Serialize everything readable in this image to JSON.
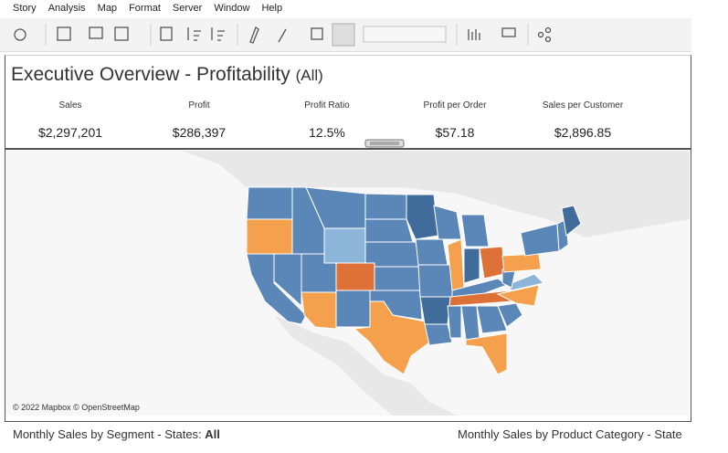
{
  "menu": [
    "Story",
    "Analysis",
    "Map",
    "Format",
    "Server",
    "Window",
    "Help"
  ],
  "dashboard": {
    "title": "Executive Overview - Profitability",
    "title_filter": "(All)",
    "kpis": [
      {
        "label": "Sales",
        "value": "$2,297,201"
      },
      {
        "label": "Profit",
        "value": "$286,397"
      },
      {
        "label": "Profit Ratio",
        "value": "12.5%"
      },
      {
        "label": "Profit per Order",
        "value": "$57.18"
      },
      {
        "label": "Sales per Customer",
        "value": "$2,896.85"
      }
    ],
    "map_attribution": "© 2022 Mapbox © OpenStreetMap",
    "footer_left": "Monthly Sales by Segment - States: ",
    "footer_left_value": "All",
    "footer_right": "Monthly Sales by Product Category - State"
  }
}
